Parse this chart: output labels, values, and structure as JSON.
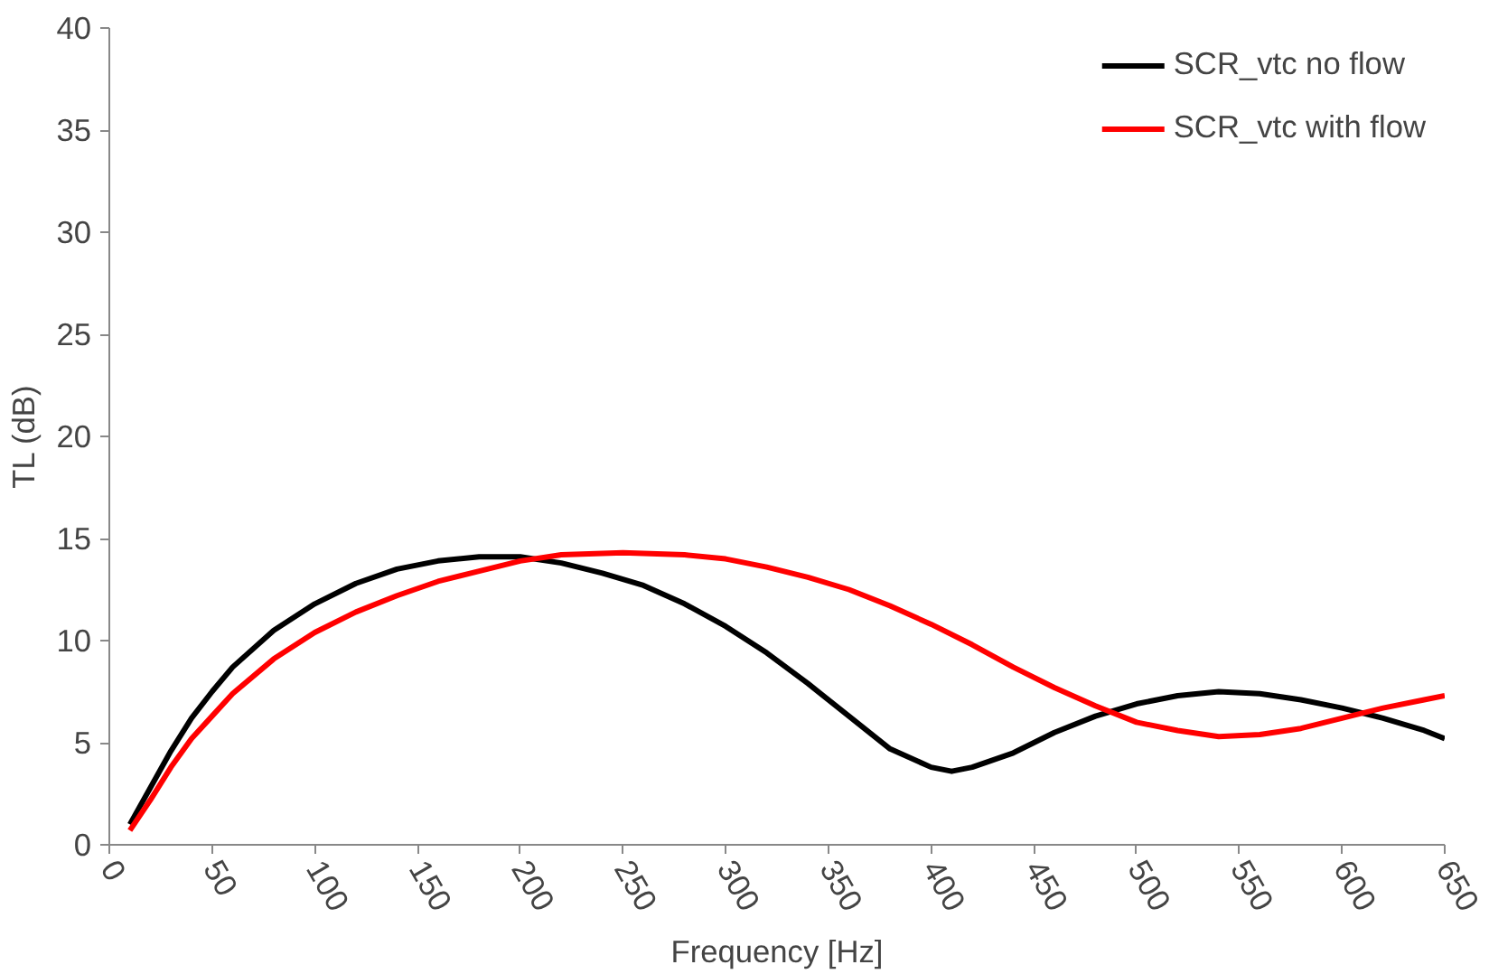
{
  "chart_data": {
    "type": "line",
    "xlabel": "Frequency [Hz]",
    "ylabel": "TL (dB)",
    "xlim": [
      0,
      650
    ],
    "xticks": [
      0,
      50,
      100,
      150,
      200,
      250,
      300,
      350,
      400,
      450,
      500,
      550,
      600,
      650
    ],
    "ylim": [
      0,
      40
    ],
    "yticks": [
      0,
      5,
      10,
      15,
      20,
      25,
      30,
      35,
      40
    ],
    "grid": false,
    "legend": "top right",
    "marker": "none",
    "line_style": "solid",
    "series": [
      {
        "name": "SCR_vtc no flow",
        "color": "#000000",
        "x": [
          10,
          20,
          30,
          40,
          50,
          60,
          80,
          100,
          120,
          140,
          160,
          180,
          200,
          220,
          240,
          260,
          280,
          300,
          320,
          340,
          360,
          380,
          400,
          410,
          420,
          440,
          460,
          480,
          500,
          520,
          540,
          560,
          580,
          600,
          620,
          640,
          650
        ],
        "values": [
          1,
          2.8,
          4.6,
          6.2,
          7.5,
          8.7,
          10.5,
          11.8,
          12.8,
          13.5,
          13.9,
          14.1,
          14.1,
          13.8,
          13.3,
          12.7,
          11.8,
          10.7,
          9.4,
          7.9,
          6.3,
          4.7,
          3.8,
          3.6,
          3.8,
          4.5,
          5.5,
          6.3,
          6.9,
          7.3,
          7.5,
          7.4,
          7.1,
          6.7,
          6.2,
          5.6,
          5.2
        ]
      },
      {
        "name": "SCR_vtc with flow",
        "color": "#ff0000",
        "x": [
          10,
          20,
          30,
          40,
          50,
          60,
          80,
          100,
          120,
          140,
          160,
          180,
          200,
          220,
          250,
          280,
          300,
          320,
          340,
          360,
          380,
          400,
          420,
          440,
          460,
          480,
          500,
          520,
          540,
          560,
          580,
          600,
          620,
          640,
          650
        ],
        "values": [
          0.7,
          2.2,
          3.8,
          5.2,
          6.3,
          7.4,
          9.1,
          10.4,
          11.4,
          12.2,
          12.9,
          13.4,
          13.9,
          14.2,
          14.3,
          14.2,
          14.0,
          13.6,
          13.1,
          12.5,
          11.7,
          10.8,
          9.8,
          8.7,
          7.7,
          6.8,
          6.0,
          5.6,
          5.3,
          5.4,
          5.7,
          6.2,
          6.7,
          7.1,
          7.3
        ]
      }
    ]
  }
}
